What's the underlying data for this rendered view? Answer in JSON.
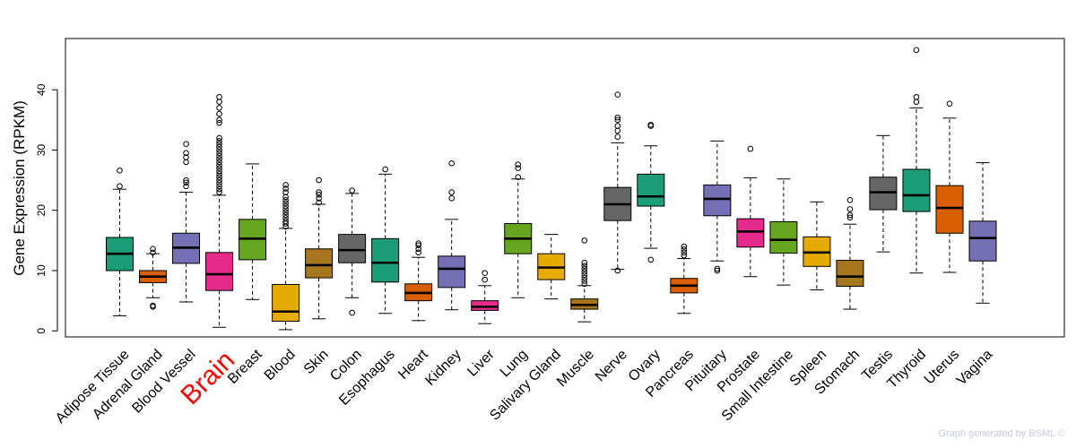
{
  "chart_data": {
    "type": "boxplot",
    "ylabel": "Gene Expression (RPKM)",
    "ylim": [
      -1,
      48.5
    ],
    "yticks": [
      0,
      10,
      20,
      30,
      40
    ],
    "highlight": "Brain",
    "colors": {
      "Adipose Tissue": "#1b9e77",
      "Adrenal Gland": "#d95f02",
      "Blood Vessel": "#7570b3",
      "Brain": "#e7298a",
      "Breast": "#66a61e",
      "Blood": "#e6ab02",
      "Skin": "#a6761d",
      "Colon": "#666666",
      "Esophagus": "#1b9e77",
      "Heart": "#d95f02",
      "Kidney": "#7570b3",
      "Liver": "#e7298a",
      "Lung": "#66a61e",
      "Salivary Gland": "#e6ab02",
      "Muscle": "#a6761d",
      "Nerve": "#666666",
      "Ovary": "#1b9e77",
      "Pancreas": "#d95f02",
      "Pituitary": "#7570b3",
      "Prostate": "#e7298a",
      "Small Intestine": "#66a61e",
      "Spleen": "#e6ab02",
      "Stomach": "#a6761d",
      "Testis": "#666666",
      "Thyroid": "#1b9e77",
      "Uterus": "#d95f02",
      "Vagina": "#7570b3"
    },
    "series": [
      {
        "name": "Adipose Tissue",
        "min": 2.5,
        "q1": 10.0,
        "median": 12.8,
        "q3": 15.5,
        "max": 23.5,
        "outliers": [
          24.0,
          26.6
        ]
      },
      {
        "name": "Adrenal Gland",
        "min": 5.5,
        "q1": 8.0,
        "median": 9.0,
        "q3": 10.0,
        "max": 12.8,
        "outliers": [
          13.0,
          13.6,
          4.2,
          4.0
        ]
      },
      {
        "name": "Blood Vessel",
        "min": 4.8,
        "q1": 11.2,
        "median": 13.8,
        "q3": 16.2,
        "max": 23.0,
        "outliers": [
          24.0,
          24.6,
          25.0,
          28.0,
          28.8,
          29.5,
          31.0
        ]
      },
      {
        "name": "Brain",
        "min": 0.6,
        "q1": 6.7,
        "median": 9.4,
        "q3": 13.0,
        "max": 22.5,
        "outliers": [
          23.0,
          23.5,
          24.0,
          24.5,
          25.0,
          25.5,
          26.0,
          26.5,
          27.0,
          27.5,
          28.0,
          28.5,
          29.0,
          29.5,
          30.0,
          30.5,
          31.0,
          31.5,
          32.0,
          34.5,
          35.0,
          36.0,
          37.0,
          38.0,
          38.8
        ]
      },
      {
        "name": "Breast",
        "min": 5.2,
        "q1": 11.8,
        "median": 15.3,
        "q3": 18.5,
        "max": 27.7,
        "outliers": []
      },
      {
        "name": "Blood",
        "min": 0.2,
        "q1": 1.6,
        "median": 3.2,
        "q3": 7.7,
        "max": 17.0,
        "outliers": [
          17.3,
          17.8,
          18.2,
          18.7,
          19.2,
          19.7,
          20.2,
          20.7,
          21.2,
          21.7,
          22.2,
          23.0,
          23.6,
          24.2
        ]
      },
      {
        "name": "Skin",
        "min": 2.0,
        "q1": 8.8,
        "median": 10.9,
        "q3": 13.6,
        "max": 21.0,
        "outliers": [
          21.3,
          22.0,
          22.6,
          23.0,
          25.0
        ]
      },
      {
        "name": "Colon",
        "min": 5.5,
        "q1": 11.3,
        "median": 13.4,
        "q3": 16.0,
        "max": 22.8,
        "outliers": [
          23.3,
          3.0
        ]
      },
      {
        "name": "Esophagus",
        "min": 2.9,
        "q1": 8.1,
        "median": 11.3,
        "q3": 15.3,
        "max": 26.0,
        "outliers": [
          26.8
        ]
      },
      {
        "name": "Heart",
        "min": 1.7,
        "q1": 5.0,
        "median": 6.3,
        "q3": 7.8,
        "max": 12.2,
        "outliers": [
          13.0,
          13.6,
          14.2,
          14.5
        ]
      },
      {
        "name": "Kidney",
        "min": 3.5,
        "q1": 7.2,
        "median": 10.3,
        "q3": 12.4,
        "max": 18.5,
        "outliers": [
          22.0,
          23.0,
          27.8
        ]
      },
      {
        "name": "Liver",
        "min": 1.2,
        "q1": 3.4,
        "median": 4.0,
        "q3": 5.0,
        "max": 7.5,
        "outliers": [
          8.5,
          9.6
        ]
      },
      {
        "name": "Lung",
        "min": 5.5,
        "q1": 12.8,
        "median": 15.3,
        "q3": 17.8,
        "max": 25.2,
        "outliers": [
          25.5,
          27.0,
          27.6
        ]
      },
      {
        "name": "Salivary Gland",
        "min": 5.3,
        "q1": 8.5,
        "median": 10.5,
        "q3": 12.8,
        "max": 16.0,
        "outliers": []
      },
      {
        "name": "Muscle",
        "min": 1.5,
        "q1": 3.6,
        "median": 4.3,
        "q3": 5.3,
        "max": 7.5,
        "outliers": [
          7.8,
          8.3,
          8.8,
          9.3,
          9.8,
          10.3,
          10.8,
          11.3,
          15.0
        ]
      },
      {
        "name": "Nerve",
        "min": 10.2,
        "q1": 18.3,
        "median": 21.0,
        "q3": 23.8,
        "max": 31.2,
        "outliers": [
          32.2,
          33.2,
          34.0,
          35.0,
          35.4,
          39.2,
          10.0
        ]
      },
      {
        "name": "Ovary",
        "min": 13.7,
        "q1": 20.7,
        "median": 22.3,
        "q3": 26.0,
        "max": 30.7,
        "outliers": [
          34.0,
          34.2,
          11.8
        ]
      },
      {
        "name": "Pancreas",
        "min": 2.9,
        "q1": 6.3,
        "median": 7.5,
        "q3": 8.7,
        "max": 12.0,
        "outliers": [
          12.5,
          13.0,
          13.5,
          14.0
        ]
      },
      {
        "name": "Pituitary",
        "min": 11.6,
        "q1": 19.1,
        "median": 21.9,
        "q3": 24.2,
        "max": 31.5,
        "outliers": [
          10.0,
          10.3
        ]
      },
      {
        "name": "Prostate",
        "min": 9.0,
        "q1": 13.9,
        "median": 16.5,
        "q3": 18.6,
        "max": 25.4,
        "outliers": [
          30.2
        ]
      },
      {
        "name": "Small Intestine",
        "min": 7.6,
        "q1": 12.9,
        "median": 15.1,
        "q3": 18.1,
        "max": 25.2,
        "outliers": []
      },
      {
        "name": "Spleen",
        "min": 6.8,
        "q1": 10.7,
        "median": 13.0,
        "q3": 15.6,
        "max": 21.4,
        "outliers": []
      },
      {
        "name": "Stomach",
        "min": 3.6,
        "q1": 7.4,
        "median": 9.0,
        "q3": 11.7,
        "max": 17.7,
        "outliers": [
          18.8,
          19.2,
          20.2,
          21.7
        ]
      },
      {
        "name": "Testis",
        "min": 13.1,
        "q1": 20.1,
        "median": 23.0,
        "q3": 25.5,
        "max": 32.4,
        "outliers": []
      },
      {
        "name": "Thyroid",
        "min": 9.6,
        "q1": 19.8,
        "median": 22.5,
        "q3": 26.8,
        "max": 37.0,
        "outliers": [
          38.0,
          38.8,
          46.6
        ]
      },
      {
        "name": "Uterus",
        "min": 9.7,
        "q1": 16.2,
        "median": 20.4,
        "q3": 24.1,
        "max": 35.3,
        "outliers": [
          37.7
        ]
      },
      {
        "name": "Vagina",
        "min": 4.6,
        "q1": 11.6,
        "median": 15.4,
        "q3": 18.2,
        "max": 27.9,
        "outliers": []
      }
    ]
  },
  "footer": {
    "credit": "Graph generated by BSML ©"
  }
}
